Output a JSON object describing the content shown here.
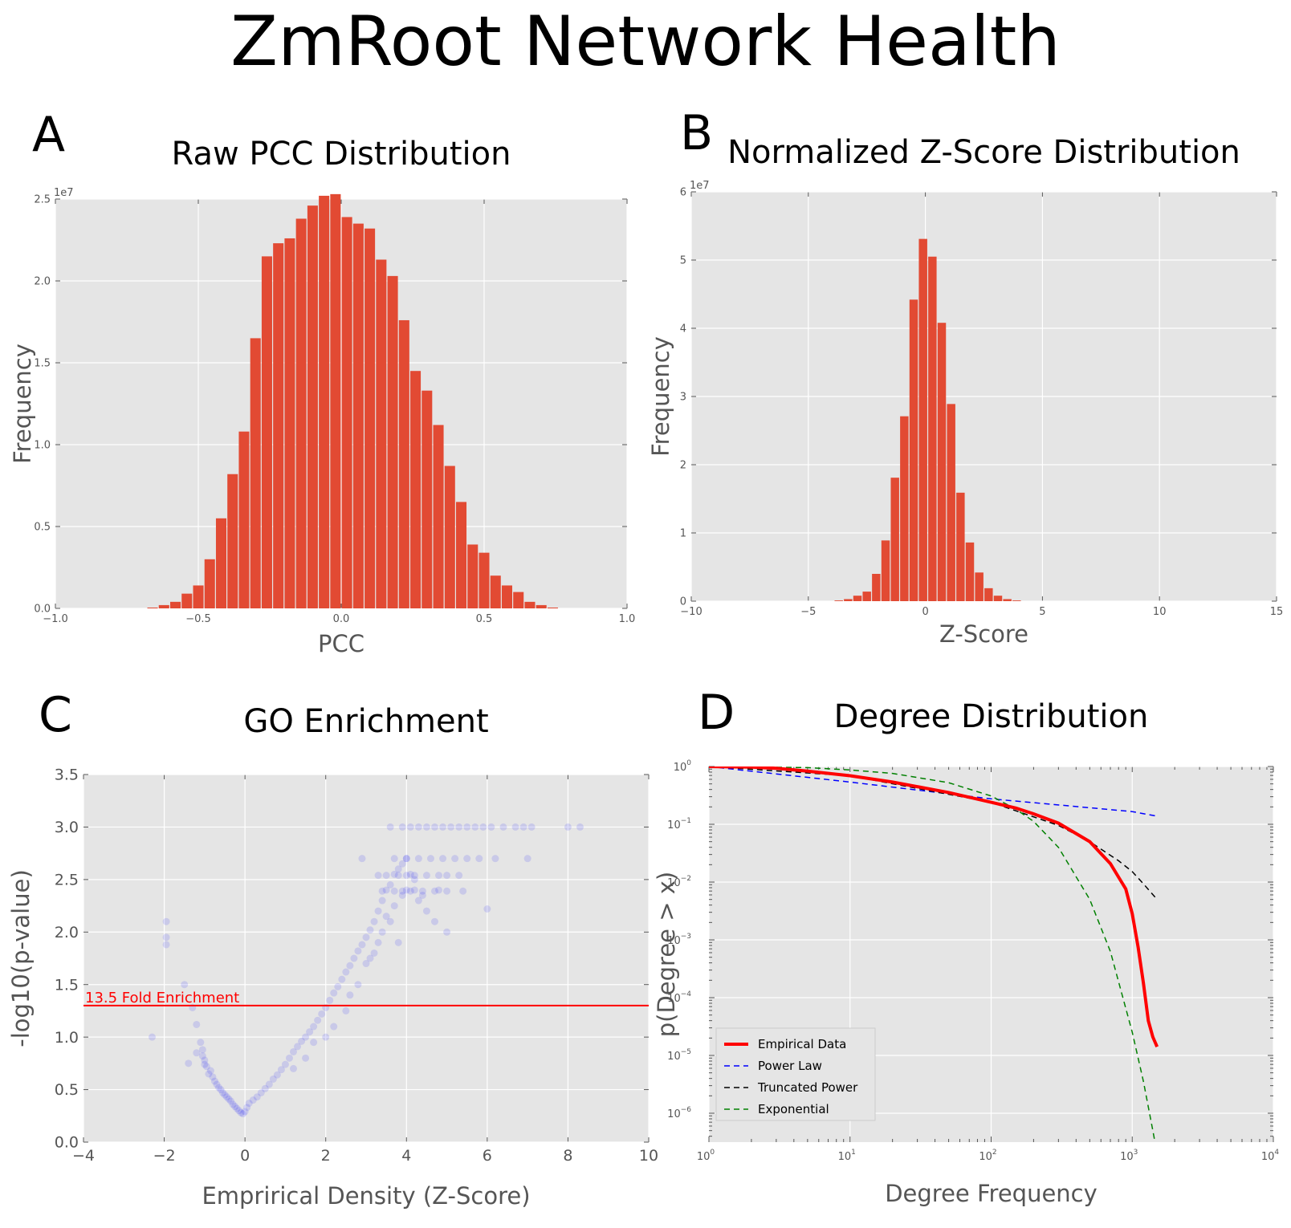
{
  "title": "ZmRoot Network Health",
  "chart_data": [
    {
      "panel": "A",
      "type": "bar",
      "title": "Raw PCC Distribution",
      "xlabel": "PCC",
      "ylabel": "Frequency",
      "y_scale_label": "1e7",
      "xlim": [
        -1.0,
        1.0
      ],
      "ylim": [
        0,
        2.5
      ],
      "xticks": [
        -1.0,
        -0.5,
        0.0,
        0.5,
        1.0
      ],
      "xtick_labels": [
        "−1.0",
        "−0.5",
        "0.0",
        "0.5",
        "1.0"
      ],
      "yticks": [
        0,
        0.5,
        1.0,
        1.5,
        2.0,
        2.5
      ],
      "ytick_labels": [
        "0.0",
        "0.5",
        "1.0",
        "1.5",
        "2.0",
        "2.5"
      ],
      "bin_edges": [
        -0.68,
        -0.64,
        -0.6,
        -0.56,
        -0.52,
        -0.48,
        -0.44,
        -0.4,
        -0.36,
        -0.32,
        -0.28,
        -0.24,
        -0.2,
        -0.16,
        -0.12,
        -0.08,
        -0.04,
        0.0,
        0.04,
        0.08,
        0.12,
        0.16,
        0.2,
        0.24,
        0.28,
        0.32,
        0.36,
        0.4,
        0.44,
        0.48,
        0.52,
        0.56,
        0.6,
        0.64,
        0.68,
        0.72,
        0.76
      ],
      "values": [
        0.005,
        0.02,
        0.04,
        0.09,
        0.14,
        0.3,
        0.55,
        0.82,
        1.08,
        1.65,
        2.15,
        2.23,
        2.26,
        2.38,
        2.46,
        2.52,
        2.53,
        2.39,
        2.35,
        2.32,
        2.13,
        2.03,
        1.76,
        1.45,
        1.33,
        1.12,
        0.87,
        0.65,
        0.39,
        0.34,
        0.2,
        0.14,
        0.1,
        0.04,
        0.02,
        0.005
      ],
      "color": "#e24a33",
      "grid": true
    },
    {
      "panel": "B",
      "type": "bar",
      "title": "Normalized Z-Score Distribution",
      "xlabel": "Z-Score",
      "ylabel": "Frequency",
      "y_scale_label": "1e7",
      "xlim": [
        -10,
        15
      ],
      "ylim": [
        0,
        6
      ],
      "xticks": [
        -10,
        -5,
        0,
        5,
        10,
        15
      ],
      "xtick_labels": [
        "−10",
        "−5",
        "0",
        "5",
        "10",
        "15"
      ],
      "yticks": [
        0,
        1,
        2,
        3,
        4,
        5,
        6
      ],
      "ytick_labels": [
        "0",
        "1",
        "2",
        "3",
        "4",
        "5",
        "6"
      ],
      "bin_edges": [
        -3.9,
        -3.5,
        -3.1,
        -2.7,
        -2.3,
        -1.9,
        -1.5,
        -1.1,
        -0.7,
        -0.3,
        0.1,
        0.5,
        0.9,
        1.3,
        1.7,
        2.1,
        2.5,
        2.9,
        3.3,
        3.7,
        4.1
      ],
      "values": [
        0.01,
        0.03,
        0.08,
        0.14,
        0.4,
        0.89,
        1.81,
        2.71,
        4.42,
        5.31,
        5.05,
        4.08,
        2.89,
        1.59,
        0.86,
        0.42,
        0.19,
        0.08,
        0.03,
        0.01
      ],
      "color": "#e24a33",
      "grid": true
    },
    {
      "panel": "C",
      "type": "scatter",
      "title": "GO Enrichment",
      "xlabel": "Emprirical Density (Z-Score)",
      "ylabel": "-log10(p-value)",
      "xlim": [
        -4,
        10
      ],
      "ylim": [
        0,
        3.5
      ],
      "xticks": [
        -4,
        -2,
        0,
        2,
        4,
        6,
        8,
        10
      ],
      "xtick_labels": [
        "−4",
        "−2",
        "0",
        "2",
        "4",
        "6",
        "8",
        "10"
      ],
      "yticks": [
        0,
        0.5,
        1.0,
        1.5,
        2.0,
        2.5,
        3.0,
        3.5
      ],
      "ytick_labels": [
        "0.0",
        "0.5",
        "1.0",
        "1.5",
        "2.0",
        "2.5",
        "3.0",
        "3.5"
      ],
      "threshold": {
        "y": 1.3,
        "label": "13.5 Fold Enrichment",
        "color": "#ff0000"
      },
      "point_color": "#0000ff",
      "point_alpha": 0.08,
      "grid": true,
      "points": [
        [
          -2.3,
          1.0
        ],
        [
          -1.95,
          2.1
        ],
        [
          -1.95,
          1.95
        ],
        [
          -1.95,
          1.88
        ],
        [
          -1.5,
          1.5
        ],
        [
          -1.3,
          1.28
        ],
        [
          -1.2,
          1.12
        ],
        [
          -1.1,
          0.95
        ],
        [
          -1.05,
          0.88
        ],
        [
          -1.05,
          0.82
        ],
        [
          -1.0,
          0.78
        ],
        [
          -1.0,
          0.74
        ],
        [
          -0.95,
          0.72
        ],
        [
          -0.85,
          0.68
        ],
        [
          -0.8,
          0.62
        ],
        [
          -0.75,
          0.58
        ],
        [
          -0.7,
          0.55
        ],
        [
          -0.65,
          0.52
        ],
        [
          -0.6,
          0.5
        ],
        [
          -0.55,
          0.47
        ],
        [
          -0.5,
          0.45
        ],
        [
          -0.45,
          0.43
        ],
        [
          -0.4,
          0.41
        ],
        [
          -0.35,
          0.39
        ],
        [
          -0.3,
          0.36
        ],
        [
          -0.25,
          0.34
        ],
        [
          -0.2,
          0.32
        ],
        [
          -0.15,
          0.3
        ],
        [
          -0.1,
          0.28
        ],
        [
          -0.05,
          0.27
        ],
        [
          0.0,
          0.29
        ],
        [
          0.05,
          0.33
        ],
        [
          0.1,
          0.37
        ],
        [
          0.2,
          0.4
        ],
        [
          0.3,
          0.43
        ],
        [
          0.4,
          0.47
        ],
        [
          0.5,
          0.51
        ],
        [
          0.6,
          0.55
        ],
        [
          0.7,
          0.6
        ],
        [
          0.8,
          0.64
        ],
        [
          0.9,
          0.69
        ],
        [
          1.0,
          0.74
        ],
        [
          1.1,
          0.8
        ],
        [
          1.2,
          0.86
        ],
        [
          1.3,
          0.91
        ],
        [
          1.4,
          0.96
        ],
        [
          1.5,
          1.0
        ],
        [
          1.6,
          1.05
        ],
        [
          1.7,
          1.1
        ],
        [
          1.8,
          1.16
        ],
        [
          1.9,
          1.22
        ],
        [
          2.0,
          1.28
        ],
        [
          2.1,
          1.35
        ],
        [
          2.2,
          1.42
        ],
        [
          2.3,
          1.48
        ],
        [
          2.4,
          1.55
        ],
        [
          2.5,
          1.62
        ],
        [
          2.6,
          1.68
        ],
        [
          2.7,
          1.75
        ],
        [
          2.8,
          1.82
        ],
        [
          2.9,
          1.88
        ],
        [
          3.0,
          1.95
        ],
        [
          3.1,
          2.02
        ],
        [
          3.2,
          2.1
        ],
        [
          3.3,
          2.2
        ],
        [
          3.4,
          2.3
        ],
        [
          3.5,
          2.4
        ],
        [
          3.6,
          2.45
        ],
        [
          3.7,
          2.55
        ],
        [
          3.8,
          2.6
        ],
        [
          3.9,
          2.65
        ],
        [
          4.0,
          2.7
        ],
        [
          4.1,
          2.55
        ],
        [
          4.2,
          2.4
        ],
        [
          4.3,
          2.3
        ],
        [
          4.5,
          2.2
        ],
        [
          4.7,
          2.1
        ],
        [
          5.0,
          2.0
        ],
        [
          -1.4,
          0.75
        ],
        [
          -1.2,
          0.85
        ],
        [
          -0.9,
          0.65
        ],
        [
          1.7,
          0.95
        ],
        [
          2.2,
          1.1
        ],
        [
          2.6,
          1.4
        ],
        [
          3.0,
          1.7
        ],
        [
          3.3,
          1.9
        ],
        [
          3.6,
          2.1
        ],
        [
          3.8,
          1.9
        ],
        [
          2.0,
          1.0
        ],
        [
          1.5,
          0.8
        ],
        [
          1.2,
          0.7
        ],
        [
          2.5,
          1.25
        ],
        [
          2.8,
          1.5
        ],
        [
          3.1,
          1.75
        ],
        [
          3.4,
          2.0
        ],
        [
          3.7,
          2.25
        ],
        [
          4.0,
          2.4
        ],
        [
          4.2,
          2.5
        ],
        [
          3.9,
          2.35
        ],
        [
          3.5,
          2.15
        ],
        [
          3.2,
          1.8
        ],
        [
          4.4,
          2.35
        ],
        [
          4.8,
          2.4
        ],
        [
          3.3,
          2.54
        ],
        [
          3.5,
          2.54
        ],
        [
          3.8,
          2.54
        ],
        [
          4.0,
          2.54
        ],
        [
          4.2,
          2.54
        ],
        [
          4.5,
          2.54
        ],
        [
          4.8,
          2.54
        ],
        [
          5.0,
          2.54
        ],
        [
          5.3,
          2.54
        ],
        [
          3.4,
          2.39
        ],
        [
          3.7,
          2.39
        ],
        [
          3.9,
          2.39
        ],
        [
          4.1,
          2.39
        ],
        [
          4.4,
          2.39
        ],
        [
          4.7,
          2.39
        ],
        [
          5.0,
          2.39
        ],
        [
          5.4,
          2.39
        ],
        [
          6.0,
          2.22
        ],
        [
          3.7,
          2.7
        ],
        [
          4.0,
          2.7
        ],
        [
          4.3,
          2.7
        ],
        [
          4.6,
          2.7
        ],
        [
          4.9,
          2.7
        ],
        [
          5.2,
          2.7
        ],
        [
          5.5,
          2.7
        ],
        [
          5.8,
          2.7
        ],
        [
          6.2,
          2.7
        ],
        [
          7.0,
          2.7
        ],
        [
          2.9,
          2.7
        ],
        [
          3.9,
          3.0
        ],
        [
          4.1,
          3.0
        ],
        [
          4.3,
          3.0
        ],
        [
          4.5,
          3.0
        ],
        [
          4.7,
          3.0
        ],
        [
          4.9,
          3.0
        ],
        [
          5.1,
          3.0
        ],
        [
          5.3,
          3.0
        ],
        [
          5.5,
          3.0
        ],
        [
          5.7,
          3.0
        ],
        [
          5.9,
          3.0
        ],
        [
          6.1,
          3.0
        ],
        [
          6.4,
          3.0
        ],
        [
          6.7,
          3.0
        ],
        [
          6.9,
          3.0
        ],
        [
          7.1,
          3.0
        ],
        [
          8.0,
          3.0
        ],
        [
          8.3,
          3.0
        ],
        [
          3.6,
          3.0
        ]
      ]
    },
    {
      "panel": "D",
      "type": "line",
      "title": "Degree Distribution",
      "xlabel": "Degree Frequency",
      "ylabel": "p(Degree > x)",
      "x_scale": "log",
      "y_scale": "log",
      "xlim": [
        1,
        10000
      ],
      "ylim_log10": [
        -6.5,
        0
      ],
      "xtick_exponents": [
        0,
        1,
        2,
        3,
        4
      ],
      "ytick_exponents": [
        0,
        -1,
        -2,
        -3,
        -4,
        -5,
        -6
      ],
      "tick_base": "10",
      "legend_position": "lower-left",
      "grid": true,
      "series": [
        {
          "name": "Empirical Data",
          "color": "#ff0000",
          "style": "solid",
          "width": 4,
          "x": [
            1,
            2,
            3,
            5,
            10,
            20,
            50,
            100,
            150,
            200,
            300,
            500,
            700,
            900,
            1000,
            1100,
            1200,
            1300,
            1400,
            1500
          ],
          "log10_y": [
            0,
            -0.01,
            -0.03,
            -0.08,
            -0.16,
            -0.27,
            -0.45,
            -0.62,
            -0.72,
            -0.82,
            -0.98,
            -1.3,
            -1.68,
            -2.12,
            -2.55,
            -3.12,
            -3.75,
            -4.4,
            -4.68,
            -4.85
          ]
        },
        {
          "name": "Power Law",
          "color": "#0000ff",
          "style": "dashed",
          "width": 1.5,
          "x": [
            1,
            10,
            100,
            1000,
            1500
          ],
          "log10_y": [
            0,
            -0.27,
            -0.56,
            -0.78,
            -0.86
          ]
        },
        {
          "name": "Truncated Power",
          "color": "#000000",
          "style": "dashed",
          "width": 1.5,
          "x": [
            1,
            10,
            100,
            300,
            500,
            800,
            1000,
            1200,
            1500
          ],
          "log10_y": [
            0,
            -0.16,
            -0.62,
            -1.02,
            -1.3,
            -1.63,
            -1.82,
            -2.03,
            -2.3
          ]
        },
        {
          "name": "Exponential",
          "color": "#008000",
          "style": "dashed",
          "width": 1.5,
          "x": [
            1,
            5,
            10,
            20,
            50,
            100,
            150,
            200,
            300,
            500,
            700,
            1000,
            1200,
            1400,
            1500
          ],
          "log10_y": [
            0,
            -0.02,
            -0.06,
            -0.12,
            -0.28,
            -0.51,
            -0.74,
            -0.95,
            -1.4,
            -2.3,
            -3.2,
            -4.6,
            -5.45,
            -6.3,
            -6.7
          ]
        }
      ]
    }
  ],
  "panel_labels": [
    "A",
    "B",
    "C",
    "D"
  ]
}
